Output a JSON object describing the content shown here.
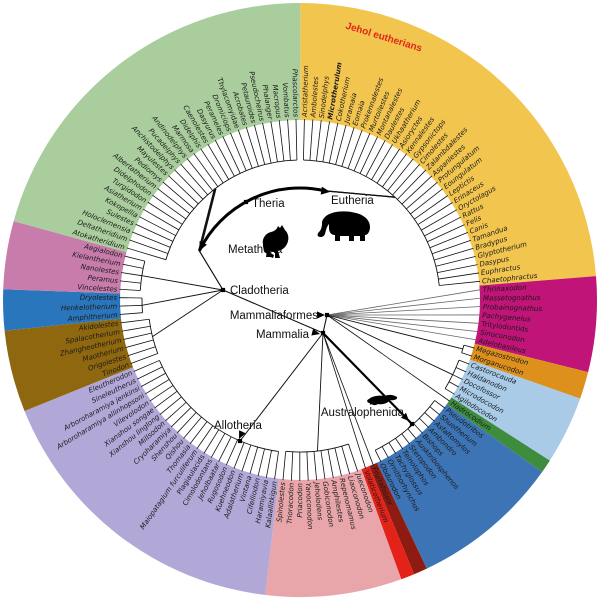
{
  "figure": {
    "type": "circular-phylogeny",
    "background": "#ffffff",
    "jehol_label": "Jehol eutherians",
    "jehol_color": "#e3261a"
  },
  "annotations": {
    "theria": "Theria",
    "eutheria": "Eutheria",
    "metatheria": "Metatheria",
    "cladotheria": "Cladotheria",
    "mammaliaformes": "Mammaliaformes",
    "mammalia": "Mammalia",
    "allotheria": "Allotheria",
    "australophenida": "Australophenida"
  },
  "silhouettes": [
    "elephant",
    "kangaroo",
    "platypus"
  ],
  "highlight": {
    "red_hex": "#e0301e",
    "dark_red_hex": "#8e1b10",
    "red_tips": [
      "Acristatherium",
      "Ambolestes",
      "Sinodelphys",
      "Microtherulum",
      "Cokotherium",
      "Eomaia",
      "Sinoconodon",
      "Jueconodon",
      "Spinolestes"
    ],
    "dark_red_tips": [
      "Hadrocodium"
    ],
    "bold_tips": [
      "Microtherulum"
    ],
    "non_italic_tips": [
      "Tritylodontids",
      "Cimolodontans",
      "Plagiaulacids",
      "Thylacomyidae"
    ]
  },
  "groups": [
    {
      "id": "eutherians",
      "color": "#f2c54f",
      "tips": [
        "Acristatherium",
        "Ambolestes",
        "Sinodelphys",
        "Microtherulum",
        "Cokotherium",
        "Juramaia",
        "Eomaia",
        "Prokennalestes",
        "Murtoilestes",
        "Montanalestes",
        "Daulestes",
        "Ukhaatherium",
        "Asioryctes",
        "Kennalestes",
        "Gypsonictops",
        "Cimolestes",
        "Zalambdalestes",
        "Aspanlestes",
        "Protungulatum",
        "Eoungulatum",
        "Leptictis",
        "Erinaceus",
        "Oryctolagus",
        "Rattus",
        "Felis",
        "Canis",
        "Tamandua",
        "Bradypus",
        "Glyptotherium",
        "Dasypus",
        "Euphractus",
        "Chaetophractus"
      ]
    },
    {
      "id": "cynodont-outgroups",
      "color": "#c01478",
      "tips": [
        "Thrinaxodon",
        "Massetognathus",
        "Probainognathus",
        "Pachygenelus",
        "Tritylodontids",
        "Sinoconodon",
        "Adelobasileus"
      ]
    },
    {
      "id": "morganucodontans",
      "color": "#dd901c",
      "tips": [
        "Megazostrodon",
        "Morganucodon"
      ]
    },
    {
      "id": "docodontans",
      "color": "#a9cbe8",
      "tips": [
        "Castorocauda",
        "Haldanodon",
        "Docofossor",
        "Microdocodon",
        "Agilodocodon"
      ]
    },
    {
      "id": "hadrocodium",
      "color": "#3e8c3d",
      "tips": [
        "Hadrocodium"
      ]
    },
    {
      "id": "australosphenidans",
      "color": "#3c74b5",
      "tips": [
        "Pseudotribos",
        "Shuotherium",
        "Asfaltomylos",
        "Ambondro",
        "Bishops",
        "Ausktribosphenos",
        "Steropodon",
        "Teinolophos",
        "Tachyglossus",
        "Ornithorhynchus",
        "Obdurodon"
      ]
    },
    {
      "id": "fruitafossor",
      "color": "#8e1b12",
      "tips": [
        "Fruitafossor"
      ]
    },
    {
      "id": "volaticotherium",
      "color": "#e3231a",
      "tips": [
        "Volaticotherium"
      ]
    },
    {
      "id": "eutriconodonts",
      "color": "#e8a6ab",
      "tips": [
        "Jueconodon",
        "Liaoconodon",
        "Repenomamus",
        "Amphilestes",
        "Gobiconodon",
        "Jeholodens",
        "Yanoconodon",
        "Priacodon",
        "Trioracodon",
        "Spinolestes"
      ]
    },
    {
      "id": "allotherians",
      "color": "#b2a8d8",
      "tips": [
        "Kalaallitkigun",
        "Haramiyavia",
        "Cifelliodon",
        "Vintana",
        "Adalatherium",
        "Kuehneodon",
        "Rugosodon",
        "Jeholbaatar",
        "Cimolodontans",
        "Plagiaulacids",
        "Maiopatagium furculiferum",
        "Thomasia",
        "Qishou",
        "Shenshou",
        "Cryoharamiya",
        "Millsodon",
        "Xianshou linglong",
        "Xianshou songae",
        "Vilevolodon",
        "Arboroharamiya allinhopsoni",
        "Arboroharamiya jenkinsi",
        "Sineleutherus",
        "Eleutherodon"
      ]
    },
    {
      "id": "symmetrodonts",
      "color": "#8f670f",
      "tips": [
        "Tinodon",
        "Origolestes",
        "Maotherium",
        "Zhangheotherium",
        "Spalacotherium",
        "Akidolestes"
      ]
    },
    {
      "id": "dryolestids",
      "color": "#2a76bc",
      "tips": [
        "Amphitherium",
        "Henkelotherium",
        "Dryolestes"
      ]
    },
    {
      "id": "stem-zatherians",
      "color": "#c77cab",
      "tips": [
        "Vincelestes",
        "Peramus",
        "Nanolestes",
        "Kielantherium",
        "Aegialodon"
      ]
    },
    {
      "id": "metatherians",
      "color": "#a9cd9c",
      "tips": [
        "Atokatheridium",
        "Deltatheridium",
        "Holoclemensia",
        "Sulestes",
        "Kokopellia",
        "Asiatherium",
        "Turgidodon",
        "Didelphodon",
        "Albertatherium",
        "Pediomys",
        "Mayulestes",
        "Anchistodelphys",
        "Pucadelphys",
        "Andinodelphys",
        "Marmosa",
        "Didelphis",
        "Caenolestes",
        "Dasyurus",
        "Perameles",
        "Dromiciops",
        "Thylacomyidae",
        "Acrobates",
        "Petauroides",
        "Pseudocheirus",
        "Phalanger",
        "Macropus",
        "Vombatus",
        "Phascolarctos"
      ]
    }
  ]
}
